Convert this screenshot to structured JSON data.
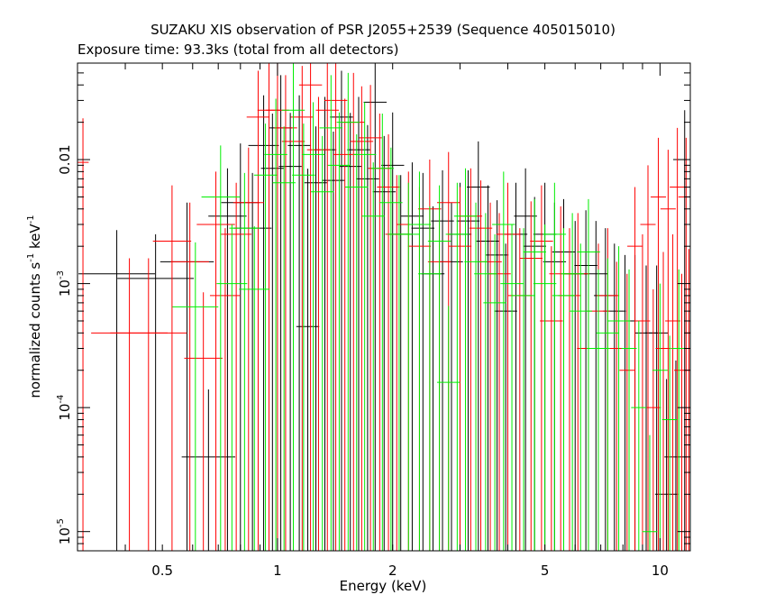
{
  "chart_data": {
    "type": "scatter",
    "title": "SUZAKU XIS observation of PSR J2055+2539 (Sequence 405015010)",
    "subtitle": "Exposure time: 93.3ks (total from all detectors)",
    "xlabel": "Energy (keV)",
    "ylabel": {
      "base": "normalized counts s",
      "sup1": "-1",
      "mid": " keV",
      "sup2": "-1"
    },
    "x_scale": "log",
    "y_scale": "log",
    "xlim": [
      0.3,
      12
    ],
    "ylim": [
      7e-06,
      0.06
    ],
    "x_ticks": [
      {
        "value": 0.5,
        "label": "0.5"
      },
      {
        "value": 1,
        "label": "1"
      },
      {
        "value": 2,
        "label": "2"
      },
      {
        "value": 5,
        "label": "5"
      },
      {
        "value": 10,
        "label": "10"
      }
    ],
    "y_ticks": [
      {
        "value": 1e-05,
        "base": "10",
        "exp": "-5"
      },
      {
        "value": 0.0001,
        "base": "10",
        "exp": "-4"
      },
      {
        "value": 0.001,
        "base": "10",
        "exp": "-3"
      },
      {
        "value": 0.01,
        "base": "0.01",
        "exp": ""
      }
    ],
    "grid": false,
    "series": [
      {
        "color": "#000000",
        "points": [
          [
            0.38,
            0.0012,
            0.1,
            0.0015
          ],
          [
            0.48,
            0.0011,
            0.1,
            0.0014
          ],
          [
            0.58,
            0.0015,
            0.07,
            0.003
          ],
          [
            0.66,
            4e-05,
            0.07,
            0.0001
          ],
          [
            0.74,
            0.0035,
            0.05,
            0.005
          ],
          [
            0.8,
            0.0045,
            0.05,
            0.009
          ],
          [
            0.86,
            0.0028,
            0.05,
            0.005
          ],
          [
            0.92,
            0.013,
            0.04,
            0.02
          ],
          [
            0.97,
            0.0085,
            0.03,
            0.015
          ],
          [
            1.02,
            0.018,
            0.03,
            0.03
          ],
          [
            1.08,
            0.0088,
            0.03,
            0.015
          ],
          [
            1.14,
            0.013,
            0.03,
            0.02
          ],
          [
            1.2,
            0.00045,
            0.03,
            0.008
          ],
          [
            1.26,
            0.0065,
            0.03,
            0.012
          ],
          [
            1.33,
            0.012,
            0.03,
            0.02
          ],
          [
            1.4,
            0.0068,
            0.03,
            0.01
          ],
          [
            1.47,
            0.022,
            0.03,
            0.03
          ],
          [
            1.55,
            0.0088,
            0.03,
            0.015
          ],
          [
            1.63,
            0.012,
            0.03,
            0.02
          ],
          [
            1.72,
            0.007,
            0.03,
            0.012
          ],
          [
            1.8,
            0.029,
            0.03,
            0.04
          ],
          [
            1.9,
            0.0055,
            0.03,
            0.01
          ],
          [
            2.0,
            0.009,
            0.03,
            0.015
          ],
          [
            2.1,
            0.0025,
            0.03,
            0.005
          ],
          [
            2.25,
            0.0035,
            0.03,
            0.006
          ],
          [
            2.4,
            0.0028,
            0.03,
            0.005
          ],
          [
            2.55,
            0.0012,
            0.03,
            0.003
          ],
          [
            2.7,
            0.0032,
            0.03,
            0.005
          ],
          [
            2.85,
            0.0015,
            0.03,
            0.003
          ],
          [
            3.0,
            0.0025,
            0.03,
            0.004
          ],
          [
            3.15,
            0.0032,
            0.03,
            0.005
          ],
          [
            3.35,
            0.006,
            0.03,
            0.008
          ],
          [
            3.55,
            0.0022,
            0.03,
            0.004
          ],
          [
            3.75,
            0.0017,
            0.03,
            0.003
          ],
          [
            3.95,
            0.0006,
            0.03,
            0.0015
          ],
          [
            4.2,
            0.0025,
            0.03,
            0.004
          ],
          [
            4.45,
            0.0035,
            0.03,
            0.005
          ],
          [
            4.7,
            0.002,
            0.03,
            0.003
          ],
          [
            5.0,
            0.0025,
            0.03,
            0.004
          ],
          [
            5.3,
            0.0015,
            0.03,
            0.003
          ],
          [
            5.6,
            0.0018,
            0.03,
            0.003
          ],
          [
            6.0,
            0.0012,
            0.03,
            0.002
          ],
          [
            6.4,
            0.0014,
            0.03,
            0.0025
          ],
          [
            6.8,
            0.0012,
            0.03,
            0.002
          ],
          [
            7.2,
            0.0008,
            0.03,
            0.002
          ],
          [
            7.6,
            0.0006,
            0.03,
            0.0015
          ],
          [
            8.1,
            0.0005,
            0.03,
            0.0012
          ],
          [
            8.6,
            0.0005,
            0.03,
            0.0012
          ],
          [
            9.2,
            0.0004,
            0.03,
            0.001
          ],
          [
            9.8,
            0.0004,
            0.03,
            0.001
          ],
          [
            10.4,
            2e-05,
            0.03,
            0.00015
          ],
          [
            11.0,
            4e-05,
            0.03,
            0.0002
          ],
          [
            11.6,
            0.01,
            0.03,
            0.015
          ]
        ]
      },
      {
        "color": "#ff0000",
        "points": [
          [
            0.31,
            0.0095,
            0.015,
            0.012
          ],
          [
            0.41,
            0.0004,
            0.1,
            0.0012
          ],
          [
            0.46,
            0.0004,
            0.1,
            0.0012
          ],
          [
            0.53,
            0.0022,
            0.05,
            0.004
          ],
          [
            0.59,
            0.0015,
            0.05,
            0.003
          ],
          [
            0.64,
            0.00025,
            0.05,
            0.0006
          ],
          [
            0.69,
            0.003,
            0.05,
            0.005
          ],
          [
            0.73,
            0.0008,
            0.04,
            0.002
          ],
          [
            0.78,
            0.0025,
            0.04,
            0.004
          ],
          [
            0.84,
            0.0045,
            0.04,
            0.008
          ],
          [
            0.89,
            0.022,
            0.03,
            0.03
          ],
          [
            0.95,
            0.025,
            0.03,
            0.035
          ],
          [
            1.0,
            0.025,
            0.03,
            0.04
          ],
          [
            1.05,
            0.018,
            0.03,
            0.03
          ],
          [
            1.1,
            0.014,
            0.03,
            0.025
          ],
          [
            1.16,
            0.022,
            0.03,
            0.035
          ],
          [
            1.22,
            0.04,
            0.03,
            0.06
          ],
          [
            1.28,
            0.012,
            0.03,
            0.02
          ],
          [
            1.35,
            0.025,
            0.03,
            0.035
          ],
          [
            1.42,
            0.03,
            0.03,
            0.04
          ],
          [
            1.5,
            0.011,
            0.03,
            0.02
          ],
          [
            1.58,
            0.02,
            0.03,
            0.03
          ],
          [
            1.66,
            0.014,
            0.03,
            0.025
          ],
          [
            1.75,
            0.015,
            0.03,
            0.025
          ],
          [
            1.85,
            0.0085,
            0.03,
            0.015
          ],
          [
            1.95,
            0.006,
            0.03,
            0.01
          ],
          [
            2.05,
            0.0025,
            0.03,
            0.005
          ],
          [
            2.2,
            0.003,
            0.03,
            0.005
          ],
          [
            2.35,
            0.002,
            0.03,
            0.004
          ],
          [
            2.5,
            0.004,
            0.03,
            0.006
          ],
          [
            2.65,
            0.0015,
            0.03,
            0.003
          ],
          [
            2.8,
            0.0045,
            0.03,
            0.007
          ],
          [
            3.0,
            0.002,
            0.03,
            0.004
          ],
          [
            3.2,
            0.0035,
            0.03,
            0.005
          ],
          [
            3.4,
            0.0028,
            0.03,
            0.004
          ],
          [
            3.6,
            0.0015,
            0.03,
            0.003
          ],
          [
            3.8,
            0.0012,
            0.03,
            0.0025
          ],
          [
            4.0,
            0.0025,
            0.03,
            0.004
          ],
          [
            4.3,
            0.0008,
            0.03,
            0.002
          ],
          [
            4.6,
            0.0016,
            0.03,
            0.003
          ],
          [
            4.9,
            0.0022,
            0.03,
            0.004
          ],
          [
            5.2,
            0.0005,
            0.03,
            0.0015
          ],
          [
            5.5,
            0.0012,
            0.03,
            0.003
          ],
          [
            5.8,
            0.0008,
            0.03,
            0.002
          ],
          [
            6.1,
            0.0012,
            0.03,
            0.0025
          ],
          [
            6.5,
            0.0003,
            0.03,
            0.001
          ],
          [
            6.9,
            0.0006,
            0.03,
            0.0015
          ],
          [
            7.3,
            0.0008,
            0.03,
            0.002
          ],
          [
            7.7,
            0.0003,
            0.03,
            0.0012
          ],
          [
            8.2,
            0.0002,
            0.02,
            0.001
          ],
          [
            8.6,
            0.002,
            0.02,
            0.004
          ],
          [
            9.0,
            0.0005,
            0.02,
            0.002
          ],
          [
            9.3,
            0.003,
            0.02,
            0.006
          ],
          [
            9.6,
            0.0001,
            0.02,
            0.0008
          ],
          [
            9.9,
            0.005,
            0.02,
            0.01
          ],
          [
            10.2,
            0.0003,
            0.02,
            0.0015
          ],
          [
            10.5,
            0.004,
            0.02,
            0.008
          ],
          [
            10.8,
            0.0005,
            0.02,
            0.002
          ],
          [
            11.1,
            0.006,
            0.02,
            0.012
          ],
          [
            11.4,
            0.0002,
            0.02,
            0.001
          ],
          [
            11.7,
            0.005,
            0.02,
            0.01
          ],
          [
            11.9,
            0.0004,
            0.01,
            0.0015
          ]
        ]
      },
      {
        "color": "#00ee00",
        "points": [
          [
            0.61,
            0.00065,
            0.06,
            0.0015
          ],
          [
            0.71,
            0.005,
            0.05,
            0.008
          ],
          [
            0.76,
            0.001,
            0.04,
            0.002
          ],
          [
            0.82,
            0.0028,
            0.04,
            0.005
          ],
          [
            0.87,
            0.0009,
            0.04,
            0.002
          ],
          [
            0.93,
            0.0075,
            0.03,
            0.012
          ],
          [
            0.99,
            0.011,
            0.03,
            0.02
          ],
          [
            1.04,
            0.0065,
            0.03,
            0.012
          ],
          [
            1.1,
            0.025,
            0.03,
            0.035
          ],
          [
            1.17,
            0.0075,
            0.03,
            0.012
          ],
          [
            1.24,
            0.011,
            0.03,
            0.018
          ],
          [
            1.31,
            0.0055,
            0.03,
            0.01
          ],
          [
            1.38,
            0.018,
            0.03,
            0.03
          ],
          [
            1.45,
            0.009,
            0.03,
            0.015
          ],
          [
            1.53,
            0.02,
            0.03,
            0.03
          ],
          [
            1.61,
            0.006,
            0.03,
            0.01
          ],
          [
            1.69,
            0.011,
            0.03,
            0.018
          ],
          [
            1.78,
            0.0035,
            0.03,
            0.006
          ],
          [
            1.88,
            0.0085,
            0.03,
            0.015
          ],
          [
            1.98,
            0.0045,
            0.03,
            0.008
          ],
          [
            2.08,
            0.0025,
            0.03,
            0.005
          ],
          [
            2.2,
            0.0025,
            0.03,
            0.004
          ],
          [
            2.35,
            0.003,
            0.03,
            0.005
          ],
          [
            2.5,
            0.0012,
            0.03,
            0.003
          ],
          [
            2.65,
            0.0022,
            0.03,
            0.004
          ],
          [
            2.8,
            0.00016,
            0.03,
            0.0005
          ],
          [
            2.95,
            0.0025,
            0.03,
            0.004
          ],
          [
            3.1,
            0.0035,
            0.03,
            0.005
          ],
          [
            3.3,
            0.0015,
            0.03,
            0.003
          ],
          [
            3.5,
            0.0012,
            0.03,
            0.0025
          ],
          [
            3.7,
            0.0007,
            0.03,
            0.0018
          ],
          [
            3.9,
            0.003,
            0.03,
            0.005
          ],
          [
            4.1,
            0.001,
            0.03,
            0.002
          ],
          [
            4.4,
            0.0008,
            0.03,
            0.002
          ],
          [
            4.7,
            0.0018,
            0.03,
            0.003
          ],
          [
            5.0,
            0.001,
            0.03,
            0.002
          ],
          [
            5.3,
            0.0025,
            0.03,
            0.004
          ],
          [
            5.6,
            0.0008,
            0.03,
            0.002
          ],
          [
            5.9,
            0.0012,
            0.03,
            0.0025
          ],
          [
            6.2,
            0.0006,
            0.03,
            0.0015
          ],
          [
            6.5,
            0.0018,
            0.03,
            0.003
          ],
          [
            6.9,
            0.0003,
            0.03,
            0.001
          ],
          [
            7.3,
            0.0004,
            0.03,
            0.0012
          ],
          [
            7.8,
            0.0005,
            0.03,
            0.0015
          ],
          [
            8.3,
            0.0003,
            0.02,
            0.001
          ],
          [
            8.8,
            0.0001,
            0.02,
            0.0004
          ],
          [
            9.4,
            1e-05,
            0.02,
            5e-05
          ],
          [
            10.0,
            0.0002,
            0.02,
            0.0008
          ],
          [
            10.6,
            8e-05,
            0.02,
            0.0003
          ],
          [
            11.2,
            0.0003,
            0.02,
            0.001
          ]
        ]
      }
    ]
  }
}
